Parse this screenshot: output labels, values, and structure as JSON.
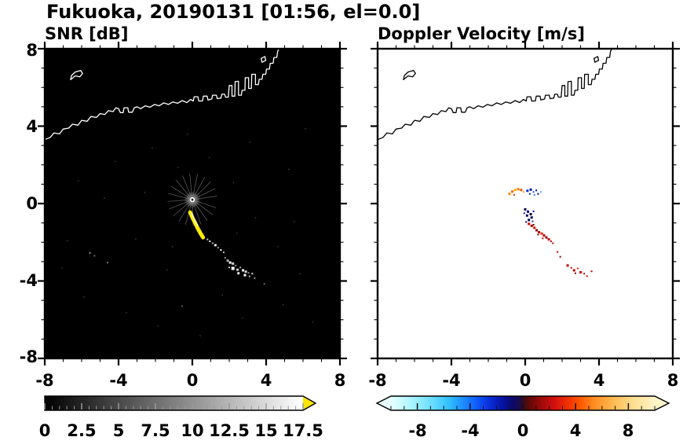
{
  "header": {
    "title": "Fukuoka, 20190131 [01:56, el=0.0]"
  },
  "coastline": {
    "segments": [
      {
        "closed": false,
        "pts": [
          [
            -8.0,
            3.3
          ],
          [
            -7.7,
            3.42
          ],
          [
            -7.5,
            3.65
          ],
          [
            -7.2,
            3.6
          ],
          [
            -7.0,
            3.85
          ],
          [
            -6.7,
            3.9
          ],
          [
            -6.5,
            4.1
          ],
          [
            -6.2,
            4.05
          ],
          [
            -6.0,
            4.3
          ],
          [
            -5.7,
            4.25
          ],
          [
            -5.5,
            4.5
          ],
          [
            -5.2,
            4.45
          ],
          [
            -5.0,
            4.65
          ],
          [
            -4.75,
            4.6
          ],
          [
            -4.55,
            4.8
          ],
          [
            -4.3,
            4.75
          ],
          [
            -4.15,
            4.95
          ],
          [
            -4.0,
            4.9
          ],
          [
            -3.9,
            4.7
          ],
          [
            -3.75,
            4.7
          ],
          [
            -3.7,
            4.95
          ],
          [
            -3.5,
            4.95
          ],
          [
            -3.45,
            4.72
          ],
          [
            -3.25,
            4.72
          ],
          [
            -3.15,
            4.95
          ],
          [
            -3.0,
            5.0
          ],
          [
            -2.8,
            4.9
          ],
          [
            -2.55,
            5.05
          ],
          [
            -2.3,
            4.98
          ],
          [
            -2.05,
            5.12
          ],
          [
            -1.8,
            5.05
          ],
          [
            -1.55,
            5.2
          ],
          [
            -1.3,
            5.12
          ],
          [
            -1.05,
            5.25
          ],
          [
            -0.8,
            5.18
          ],
          [
            -0.55,
            5.32
          ],
          [
            -0.3,
            5.22
          ],
          [
            -0.1,
            5.38
          ],
          [
            0.05,
            5.3
          ],
          [
            0.1,
            5.52
          ],
          [
            0.3,
            5.52
          ],
          [
            0.35,
            5.3
          ],
          [
            0.55,
            5.3
          ],
          [
            0.6,
            5.55
          ],
          [
            0.8,
            5.55
          ],
          [
            0.85,
            5.35
          ],
          [
            1.05,
            5.4
          ],
          [
            1.1,
            5.6
          ],
          [
            1.3,
            5.6
          ],
          [
            1.35,
            5.42
          ],
          [
            1.55,
            5.45
          ],
          [
            1.6,
            5.65
          ],
          [
            1.75,
            5.65
          ],
          [
            1.8,
            5.5
          ],
          [
            1.95,
            5.5
          ],
          [
            2.0,
            6.1
          ],
          [
            2.15,
            6.1
          ],
          [
            2.15,
            5.55
          ],
          [
            2.3,
            5.55
          ],
          [
            2.32,
            6.3
          ],
          [
            2.5,
            6.32
          ],
          [
            2.5,
            5.6
          ],
          [
            2.65,
            5.6
          ],
          [
            2.7,
            5.85
          ],
          [
            2.85,
            5.85
          ],
          [
            2.87,
            6.5
          ],
          [
            3.05,
            6.5
          ],
          [
            3.05,
            5.95
          ],
          [
            3.2,
            5.95
          ],
          [
            3.22,
            6.68
          ],
          [
            3.42,
            6.68
          ],
          [
            3.42,
            6.15
          ],
          [
            3.58,
            6.15
          ],
          [
            3.62,
            6.42
          ],
          [
            3.78,
            6.42
          ],
          [
            3.82,
            6.68
          ],
          [
            3.98,
            6.68
          ],
          [
            4.02,
            6.95
          ],
          [
            4.18,
            6.95
          ],
          [
            4.22,
            7.25
          ],
          [
            4.38,
            7.25
          ],
          [
            4.42,
            7.55
          ],
          [
            4.58,
            7.55
          ],
          [
            4.62,
            7.85
          ],
          [
            4.72,
            8.05
          ]
        ]
      },
      {
        "closed": true,
        "pts": [
          [
            -6.6,
            6.4
          ],
          [
            -6.35,
            6.6
          ],
          [
            -6.1,
            6.55
          ],
          [
            -5.95,
            6.72
          ],
          [
            -6.05,
            6.88
          ],
          [
            -6.35,
            6.8
          ],
          [
            -6.55,
            6.62
          ]
        ]
      },
      {
        "closed": true,
        "pts": [
          [
            3.78,
            7.3
          ],
          [
            3.98,
            7.4
          ],
          [
            3.93,
            7.6
          ],
          [
            3.73,
            7.5
          ]
        ]
      }
    ]
  },
  "chart_data": [
    {
      "type": "heatmap",
      "title": "SNR [dB]",
      "xlim": [
        -8,
        8
      ],
      "ylim": [
        -8,
        8
      ],
      "xticks": [
        -8,
        -4,
        0,
        4,
        8
      ],
      "yticks": [
        -8,
        -4,
        0,
        4,
        8
      ],
      "xtick_labels": [
        "-8",
        "-4",
        "0",
        "4",
        "8"
      ],
      "ytick_labels": [
        "8",
        "4",
        "0",
        "-4",
        "-8"
      ],
      "minor_tick_step": 1,
      "grid": false,
      "background": "#000000",
      "coast_color": "#ffffff",
      "radar": {
        "center": [
          0,
          0.2
        ],
        "spoke_r0": 0.18,
        "spoke_r1": 1.35,
        "spoke_color": "#c8c8c8",
        "spoke_angles": [
          8,
          25,
          43,
          60,
          78,
          96,
          113,
          131,
          149,
          166,
          184,
          201,
          219,
          237,
          254,
          272,
          290,
          307,
          325,
          342
        ]
      },
      "streaks": [
        {
          "color": "#ffec00",
          "width": 5,
          "opacity": 1,
          "pts": [
            [
              -0.12,
              -0.45
            ],
            [
              0.0,
              -0.72
            ],
            [
              0.15,
              -1.0
            ],
            [
              0.3,
              -1.3
            ],
            [
              0.45,
              -1.55
            ],
            [
              0.58,
              -1.75
            ]
          ]
        },
        {
          "color": "#ffffff",
          "width": 1.6,
          "opacity": 0.85,
          "pts": [
            [
              -0.05,
              -0.5
            ],
            [
              0.12,
              -0.85
            ],
            [
              0.28,
              -1.15
            ]
          ]
        }
      ],
      "points": [
        [
          0.82,
          -1.85,
          "#cccccc",
          2
        ],
        [
          0.95,
          -1.95,
          "#ffffff",
          2
        ],
        [
          1.1,
          -2.05,
          "#aaaaaa",
          2
        ],
        [
          1.25,
          -2.15,
          "#e8e8e8",
          3
        ],
        [
          1.4,
          -2.28,
          "#999999",
          2
        ],
        [
          1.55,
          -2.4,
          "#ffffff",
          2
        ],
        [
          1.7,
          -2.52,
          "#c0c0c0",
          2
        ],
        [
          1.78,
          -2.8,
          "#909090",
          2
        ],
        [
          1.92,
          -2.95,
          "#b0b0b0",
          3
        ],
        [
          2.05,
          -3.05,
          "#ffffff",
          3
        ],
        [
          2.2,
          -3.1,
          "#d8d8d8",
          3
        ],
        [
          2.35,
          -3.2,
          "#909090",
          2
        ],
        [
          2.2,
          -3.35,
          "#ffffff",
          4
        ],
        [
          2.45,
          -3.42,
          "#cccccc",
          3
        ],
        [
          2.6,
          -3.3,
          "#a8a8a8",
          2
        ],
        [
          2.75,
          -3.45,
          "#ffffff",
          3
        ],
        [
          2.9,
          -3.52,
          "#d0d0d0",
          3
        ],
        [
          3.05,
          -3.58,
          "#888888",
          2
        ],
        [
          2.5,
          -3.6,
          "#e0e0e0",
          3
        ],
        [
          2.85,
          -3.7,
          "#ffffff",
          3
        ],
        [
          3.1,
          -3.76,
          "#b8b8b8",
          2
        ],
        [
          3.25,
          -3.62,
          "#dddddd",
          2
        ],
        [
          2.0,
          -3.3,
          "#c8c8c8",
          2
        ],
        [
          3.38,
          -3.85,
          "#999999",
          2
        ],
        [
          -5.55,
          -2.55,
          "#999999",
          2
        ],
        [
          -5.3,
          -2.7,
          "#666666",
          2
        ],
        [
          -4.6,
          -3.05,
          "#777777",
          2
        ],
        [
          3.9,
          -4.15,
          "#666666",
          2
        ],
        [
          -0.55,
          -5.3,
          "#555555",
          2
        ]
      ],
      "noise": [
        [
          -6.2,
          1.2
        ],
        [
          -4.8,
          0.3
        ],
        [
          -3.1,
          -1.8
        ],
        [
          -2.2,
          2.9
        ],
        [
          -1.4,
          -3.4
        ],
        [
          -0.8,
          1.9
        ],
        [
          0.9,
          2.4
        ],
        [
          2.2,
          1.1
        ],
        [
          3.4,
          -0.7
        ],
        [
          4.6,
          -2.2
        ],
        [
          5.2,
          1.8
        ],
        [
          5.8,
          -3.6
        ],
        [
          -5.9,
          -4.8
        ],
        [
          -3.6,
          -5.6
        ],
        [
          -1.9,
          -6.3
        ],
        [
          0.4,
          -6.8
        ],
        [
          2.7,
          -5.9
        ],
        [
          4.9,
          -5.2
        ],
        [
          6.1,
          3.9
        ],
        [
          -6.8,
          -1.9
        ],
        [
          -2.6,
          0.6
        ],
        [
          1.6,
          -4.7
        ],
        [
          -0.3,
          3.6
        ],
        [
          3.1,
          3.2
        ],
        [
          -4.2,
          2.2
        ],
        [
          5.5,
          -0.9
        ],
        [
          -7.1,
          -3.3
        ],
        [
          6.5,
          -6.1
        ],
        [
          -1.1,
          -2.2
        ],
        [
          2.4,
          -1.5
        ]
      ],
      "colorbar": {
        "range": [
          0,
          17.5
        ],
        "tick_labels": [
          "0",
          "2.5",
          "5",
          "7.5",
          "10",
          "12.5",
          "15",
          "17.5"
        ],
        "minor_count": 35,
        "major_values": [
          0,
          2.5,
          5,
          7.5,
          10,
          12.5,
          15,
          17.5
        ],
        "tick_color": "#999999",
        "stops": [
          [
            "0%",
            "#000000"
          ],
          [
            "100%",
            "#ffffff"
          ]
        ],
        "over_color": "#ffe400"
      }
    },
    {
      "type": "scatter",
      "title": "Doppler Velocity [m/s]",
      "xlim": [
        -8,
        8
      ],
      "ylim": [
        -8,
        8
      ],
      "xticks": [
        -8,
        -4,
        0,
        4,
        8
      ],
      "yticks": [
        -8,
        -4,
        0,
        4,
        8
      ],
      "xtick_labels": [
        "-8",
        "-4",
        "0",
        "4",
        "8"
      ],
      "ytick_labels": [
        "8",
        "4",
        "0",
        "-4",
        "-8"
      ],
      "minor_tick_step": 1,
      "grid": false,
      "background": "#ffffff",
      "coast_color": "#000000",
      "points": [
        [
          -0.85,
          0.5,
          "#ff8800",
          3
        ],
        [
          -0.7,
          0.62,
          "#ff6600",
          3
        ],
        [
          -0.55,
          0.7,
          "#ffaa00",
          3
        ],
        [
          -0.38,
          0.74,
          "#ff7700",
          3
        ],
        [
          -0.22,
          0.7,
          "#ee5500",
          3
        ],
        [
          -0.08,
          0.6,
          "#ff9900",
          2
        ],
        [
          -0.6,
          0.45,
          "#cc4400",
          2
        ],
        [
          0.12,
          0.66,
          "#0033cc",
          3
        ],
        [
          0.3,
          0.72,
          "#001199",
          3
        ],
        [
          0.45,
          0.6,
          "#2255ee",
          2
        ],
        [
          0.6,
          0.68,
          "#000088",
          2
        ],
        [
          0.5,
          0.45,
          "#3377ff",
          2
        ],
        [
          0.7,
          0.5,
          "#000066",
          2
        ],
        [
          0.25,
          0.5,
          "#0022aa",
          2
        ],
        [
          0.85,
          0.6,
          "#44bbff",
          2
        ],
        [
          0.0,
          -0.3,
          "#000055",
          3
        ],
        [
          0.15,
          -0.42,
          "#000088",
          3
        ],
        [
          0.3,
          -0.55,
          "#000033",
          3
        ],
        [
          0.1,
          -0.62,
          "#111166",
          3
        ],
        [
          0.35,
          -0.72,
          "#000055",
          3
        ],
        [
          0.2,
          -0.85,
          "#000044",
          3
        ],
        [
          0.4,
          -0.92,
          "#222288",
          2
        ],
        [
          0.05,
          -0.95,
          "#000066",
          2
        ],
        [
          -0.05,
          -0.5,
          "#1a1a77",
          2
        ],
        [
          0.45,
          -0.4,
          "#0000aa",
          2
        ],
        [
          0.2,
          -1.05,
          "#cc0000",
          3
        ],
        [
          0.35,
          -1.15,
          "#aa0000",
          3
        ],
        [
          0.5,
          -1.25,
          "#dd1100",
          3
        ],
        [
          0.62,
          -1.38,
          "#880000",
          3
        ],
        [
          0.75,
          -1.48,
          "#cc0000",
          3
        ],
        [
          0.9,
          -1.55,
          "#ff2200",
          3
        ],
        [
          1.02,
          -1.65,
          "#bb0000",
          3
        ],
        [
          1.15,
          -1.75,
          "#990000",
          3
        ],
        [
          1.28,
          -1.85,
          "#cc0000",
          3
        ],
        [
          1.4,
          -1.95,
          "#aa0000",
          2
        ],
        [
          0.45,
          -1.1,
          "#550000",
          2
        ],
        [
          0.7,
          -1.6,
          "#770000",
          2
        ],
        [
          0.95,
          -1.8,
          "#dd0000",
          2
        ],
        [
          1.5,
          -2.05,
          "#bb0000",
          2
        ],
        [
          1.75,
          -2.5,
          "#bb0000",
          2
        ],
        [
          1.9,
          -2.75,
          "#880000",
          2
        ],
        [
          2.3,
          -3.2,
          "#cc0000",
          3
        ],
        [
          2.5,
          -3.32,
          "#dd0000",
          2
        ],
        [
          2.65,
          -3.45,
          "#bb0000",
          3
        ],
        [
          2.85,
          -3.35,
          "#ff2200",
          2
        ],
        [
          3.0,
          -3.55,
          "#cc0000",
          3
        ],
        [
          3.2,
          -3.62,
          "#aa0000",
          2
        ],
        [
          3.35,
          -3.75,
          "#dd0000",
          2
        ],
        [
          2.72,
          -3.6,
          "#880000",
          2
        ],
        [
          3.6,
          -3.5,
          "#cc0000",
          2
        ]
      ],
      "colorbar": {
        "range": [
          -10,
          10
        ],
        "tick_labels": [
          "-8",
          "-4",
          "0",
          "4",
          "8"
        ],
        "minor_count": 20,
        "major_values": [
          -8,
          -4,
          0,
          4,
          8
        ],
        "tick_color": "#111111",
        "stops": [
          [
            "0%",
            "#e6ffff"
          ],
          [
            "7%",
            "#b0f6ff"
          ],
          [
            "15%",
            "#6ee0ff"
          ],
          [
            "22%",
            "#30c0ff"
          ],
          [
            "27%",
            "#1e90ff"
          ],
          [
            "32%",
            "#1060ff"
          ],
          [
            "37%",
            "#0a30dc"
          ],
          [
            "42%",
            "#0714a8"
          ],
          [
            "46%",
            "#0a0a6e"
          ],
          [
            "49%",
            "#1e0a46"
          ],
          [
            "51%",
            "#460a0a"
          ],
          [
            "54%",
            "#780808"
          ],
          [
            "58%",
            "#aa0a0a"
          ],
          [
            "62%",
            "#d41010"
          ],
          [
            "67%",
            "#f03000"
          ],
          [
            "72%",
            "#ff5a00"
          ],
          [
            "77%",
            "#ff8c20"
          ],
          [
            "84%",
            "#ffb950"
          ],
          [
            "92%",
            "#ffdf90"
          ],
          [
            "100%",
            "#fff3c8"
          ]
        ],
        "under_color": "#e6ffff",
        "over_color": "#fff3c8"
      }
    }
  ]
}
